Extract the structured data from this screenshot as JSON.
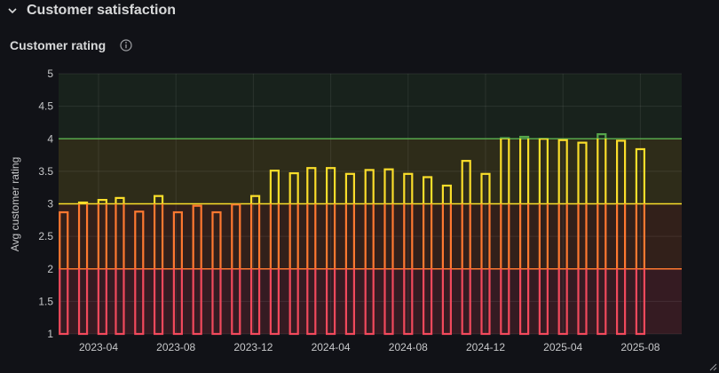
{
  "row": {
    "title": "Customer satisfaction",
    "icon": "chevron-down-icon"
  },
  "panel": {
    "title": "Customer rating",
    "info_icon": "info-icon"
  },
  "colors": {
    "background": "#111217",
    "red": "#f2495c",
    "orange": "#ff7830",
    "yellow": "#fade2a",
    "green": "#56a64b"
  },
  "chart_data": {
    "type": "bar",
    "ylabel": "Avg customer rating",
    "ylim": [
      1,
      5
    ],
    "yticks": [
      "1",
      "1.5",
      "2",
      "2.5",
      "3",
      "3.5",
      "4",
      "4.5",
      "5"
    ],
    "xticks": [
      {
        "label": "2023-04",
        "month": 3
      },
      {
        "label": "2023-08",
        "month": 7
      },
      {
        "label": "2023-12",
        "month": 11
      },
      {
        "label": "2024-04",
        "month": 15
      },
      {
        "label": "2024-08",
        "month": 19
      },
      {
        "label": "2024-12",
        "month": 23
      },
      {
        "label": "2025-04",
        "month": 27
      },
      {
        "label": "2025-08",
        "month": 31
      }
    ],
    "thresholds": [
      {
        "from": 1,
        "to": 2,
        "color": "red"
      },
      {
        "from": 2,
        "to": 3,
        "color": "orange"
      },
      {
        "from": 3,
        "to": 4,
        "color": "yellow"
      },
      {
        "from": 4,
        "to": 5,
        "color": "green"
      }
    ],
    "grid": true,
    "bars": [
      {
        "date": "2023-02",
        "m": 1.2,
        "value": 2.87
      },
      {
        "date": "2023-03",
        "m": 2.2,
        "value": 3.02
      },
      {
        "date": "2023-04",
        "m": 3.2,
        "value": 3.06
      },
      {
        "date": "2023-05",
        "m": 4.1,
        "value": 3.09
      },
      {
        "date": "2023-06",
        "m": 5.1,
        "value": 2.88
      },
      {
        "date": "2023-07",
        "m": 6.1,
        "value": 3.12
      },
      {
        "date": "2023-08",
        "m": 7.1,
        "value": 2.87
      },
      {
        "date": "2023-09",
        "m": 8.1,
        "value": 2.97
      },
      {
        "date": "2023-10",
        "m": 9.1,
        "value": 2.87
      },
      {
        "date": "2023-11",
        "m": 10.1,
        "value": 2.99
      },
      {
        "date": "2023-12",
        "m": 11.1,
        "value": 3.12
      },
      {
        "date": "2024-01",
        "m": 12.1,
        "value": 3.51
      },
      {
        "date": "2024-02",
        "m": 13.1,
        "value": 3.47
      },
      {
        "date": "2024-03",
        "m": 14.0,
        "value": 3.55
      },
      {
        "date": "2024-04",
        "m": 15.0,
        "value": 3.55
      },
      {
        "date": "2024-05",
        "m": 16.0,
        "value": 3.46
      },
      {
        "date": "2024-06",
        "m": 17.0,
        "value": 3.52
      },
      {
        "date": "2024-07",
        "m": 18.0,
        "value": 3.53
      },
      {
        "date": "2024-08",
        "m": 19.0,
        "value": 3.46
      },
      {
        "date": "2024-09",
        "m": 20.0,
        "value": 3.41
      },
      {
        "date": "2024-10",
        "m": 21.0,
        "value": 3.28
      },
      {
        "date": "2024-11",
        "m": 22.0,
        "value": 3.66
      },
      {
        "date": "2024-12",
        "m": 23.0,
        "value": 3.46
      },
      {
        "date": "2025-01",
        "m": 24.0,
        "value": 4.01
      },
      {
        "date": "2025-02",
        "m": 25.0,
        "value": 4.03
      },
      {
        "date": "2025-03",
        "m": 26.0,
        "value": 4.0
      },
      {
        "date": "2025-04",
        "m": 27.0,
        "value": 3.98
      },
      {
        "date": "2025-05",
        "m": 28.0,
        "value": 3.94
      },
      {
        "date": "2025-06",
        "m": 29.0,
        "value": 4.07
      },
      {
        "date": "2025-07",
        "m": 30.0,
        "value": 3.97
      },
      {
        "date": "2025-08",
        "m": 31.0,
        "value": 3.84
      }
    ]
  }
}
